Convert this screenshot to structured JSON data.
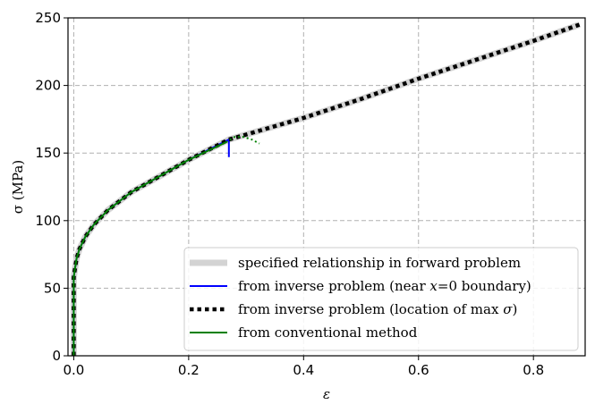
{
  "chart_data": {
    "type": "line",
    "title": "",
    "xlabel": "ε",
    "ylabel": "σ (MPa)",
    "xlim": [
      -0.01,
      0.89
    ],
    "ylim": [
      0,
      250
    ],
    "x_ticks": [
      "0.0",
      "0.2",
      "0.4",
      "0.6",
      "0.8"
    ],
    "y_ticks": [
      "0",
      "50",
      "100",
      "150",
      "200",
      "250"
    ],
    "grid": true,
    "legend_position": "lower-right",
    "series": [
      {
        "name": "specified relationship in forward problem",
        "color": "#d3d3d3",
        "style": "solid-thick",
        "x": [
          0.0,
          0.0,
          0.0,
          0.002,
          0.005,
          0.01,
          0.02,
          0.035,
          0.06,
          0.1,
          0.15,
          0.2,
          0.27,
          0.4,
          0.5,
          0.6,
          0.7,
          0.8,
          0.88
        ],
        "y": [
          0,
          40,
          58,
          64,
          72,
          79,
          88,
          97,
          108,
          121,
          133,
          145,
          160,
          176,
          190,
          205,
          219,
          233,
          245
        ]
      },
      {
        "name": "from inverse problem (near x=0 boundary)",
        "color": "#0000ff",
        "style": "solid",
        "x": [
          0.0,
          0.0,
          0.0,
          0.002,
          0.005,
          0.01,
          0.02,
          0.035,
          0.06,
          0.1,
          0.15,
          0.2,
          0.27,
          0.27
        ],
        "y": [
          0,
          40,
          58,
          64,
          72,
          79,
          88,
          97,
          108,
          121,
          133,
          145,
          160,
          147
        ]
      },
      {
        "name": "from inverse problem (location of max σ)",
        "color": "#000000",
        "style": "dotted-thick",
        "x": [
          0.0,
          0.0,
          0.0,
          0.002,
          0.005,
          0.01,
          0.02,
          0.035,
          0.06,
          0.1,
          0.15,
          0.2,
          0.27,
          0.4,
          0.5,
          0.6,
          0.7,
          0.8,
          0.88
        ],
        "y": [
          0,
          40,
          58,
          64,
          72,
          79,
          88,
          97,
          108,
          121,
          133,
          145,
          160,
          176,
          190,
          205,
          219,
          233,
          245
        ]
      },
      {
        "name": "from conventional method",
        "color": "#008000",
        "style": "solid",
        "x": [
          0.0,
          0.0,
          0.0,
          0.002,
          0.005,
          0.01,
          0.02,
          0.035,
          0.06,
          0.1,
          0.15,
          0.2,
          0.265
        ],
        "y": [
          0,
          40,
          58,
          64,
          72,
          79,
          88,
          97,
          108,
          121,
          133,
          145,
          158
        ]
      },
      {
        "color": "#008000",
        "style": "dotted",
        "x": [
          0.265,
          0.28,
          0.295,
          0.31,
          0.323
        ],
        "y": [
          158,
          162,
          162,
          160,
          157
        ]
      }
    ],
    "legend_labels": {
      "item1": "specified relationship in forward problem",
      "item2_prefix": "from inverse problem (near ",
      "item2_var": "x",
      "item2_suffix": "=0 boundary)",
      "item3_prefix": "from inverse problem (location of max ",
      "item3_var": "σ",
      "item3_suffix": ")",
      "item4": "from conventional method"
    }
  }
}
